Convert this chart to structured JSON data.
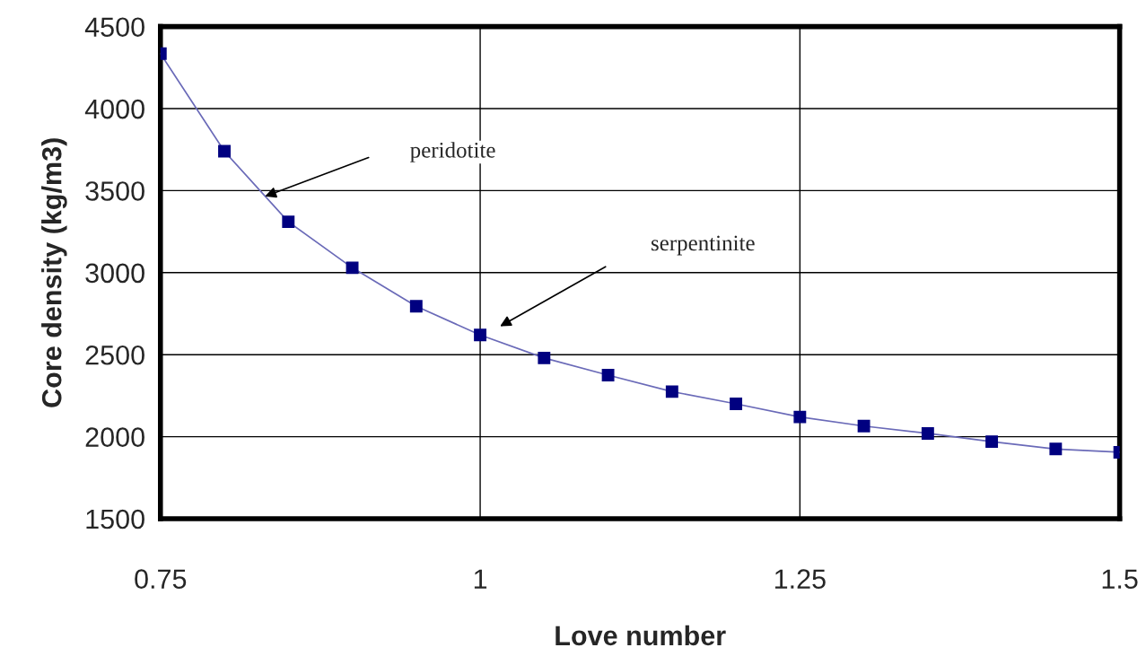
{
  "chart_data": {
    "type": "line",
    "xlabel": "Love number",
    "ylabel": "Core density (kg/m3)",
    "x": [
      0.75,
      0.8,
      0.85,
      0.9,
      0.95,
      1.0,
      1.05,
      1.1,
      1.15,
      1.2,
      1.25,
      1.3,
      1.35,
      1.4,
      1.45,
      1.5
    ],
    "series": [
      {
        "color": "#000080",
        "values": [
          4335,
          3740,
          3310,
          3030,
          2795,
          2620,
          2480,
          2375,
          2275,
          2200,
          2120,
          2065,
          2020,
          1970,
          1925,
          1905
        ]
      }
    ],
    "xlim": [
      0.75,
      1.5
    ],
    "xticks": [
      0.75,
      1,
      1.25,
      1.5
    ],
    "ylim": [
      1500,
      4500
    ],
    "yticks": [
      1500,
      2000,
      2500,
      3000,
      3500,
      4000,
      4500
    ],
    "grid": true,
    "marker": "square",
    "line_style": "solid",
    "annotations": [
      "peridotite",
      "serpentinite"
    ]
  }
}
